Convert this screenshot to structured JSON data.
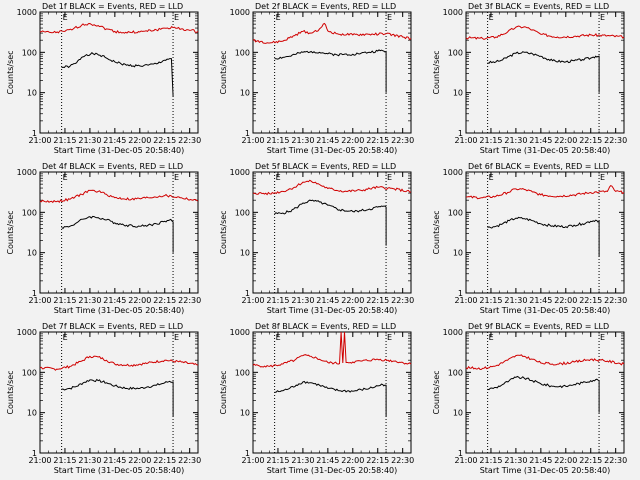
{
  "common": {
    "xlabel": "Start Time (31-Dec-05 20:58:40)",
    "ylabel": "Counts/sec",
    "xticks": [
      "21:00",
      "21:15",
      "21:30",
      "21:45",
      "22:00",
      "22:15",
      "22:30"
    ],
    "yticks": [
      "1",
      "10",
      "100",
      "1000"
    ],
    "markers": [
      "E",
      "E"
    ],
    "colors": {
      "events": "#000000",
      "lld": "#d00000",
      "background": "#f2f2f2"
    }
  },
  "chart_data": [
    {
      "type": "line",
      "title": "Det 1f BLACK = Events, RED = LLD",
      "xlabel": "Start Time (31-Dec-05 20:58:40)",
      "ylabel": "Counts/sec",
      "yscale": "log",
      "ylim": [
        1,
        1000
      ],
      "xlim": [
        "21:00",
        "22:35"
      ],
      "event_lines": [
        "21:13",
        "22:20"
      ],
      "series": [
        {
          "name": "Events",
          "color": "#000000",
          "x": [
            "21:13",
            "21:18",
            "21:22",
            "21:25",
            "21:28",
            "21:32",
            "21:36",
            "21:40",
            "21:45",
            "21:52",
            "22:00",
            "22:05",
            "22:10",
            "22:14",
            "22:18",
            "22:19",
            "22:20"
          ],
          "values": [
            42,
            45,
            55,
            75,
            88,
            92,
            85,
            72,
            58,
            48,
            46,
            48,
            52,
            62,
            70,
            70,
            8
          ]
        },
        {
          "name": "LLD",
          "color": "#d00000",
          "x": [
            "21:00",
            "21:08",
            "21:15",
            "21:20",
            "21:25",
            "21:30",
            "21:35",
            "21:40",
            "21:45",
            "21:50",
            "22:00",
            "22:10",
            "22:15",
            "22:20",
            "22:25",
            "22:30",
            "22:35"
          ],
          "values": [
            320,
            310,
            330,
            380,
            470,
            520,
            460,
            380,
            330,
            310,
            320,
            360,
            400,
            410,
            380,
            350,
            330
          ]
        }
      ]
    },
    {
      "type": "line",
      "title": "Det 2f BLACK = Events, RED = LLD",
      "xlabel": "Start Time (31-Dec-05 20:58:40)",
      "ylabel": "Counts/sec",
      "yscale": "log",
      "ylim": [
        1,
        1000
      ],
      "xlim": [
        "21:00",
        "22:35"
      ],
      "event_lines": [
        "21:13",
        "22:20"
      ],
      "series": [
        {
          "name": "Events",
          "color": "#000000",
          "x": [
            "21:13",
            "21:18",
            "21:22",
            "21:26",
            "21:30",
            "21:35",
            "21:40",
            "21:45",
            "21:50",
            "22:00",
            "22:05",
            "22:10",
            "22:15",
            "22:18",
            "22:20",
            "22:20"
          ],
          "values": [
            70,
            75,
            80,
            90,
            100,
            105,
            100,
            92,
            88,
            90,
            95,
            100,
            108,
            110,
            105,
            10
          ]
        },
        {
          "name": "LLD",
          "color": "#d00000",
          "x": [
            "21:00",
            "21:10",
            "21:18",
            "21:25",
            "21:30",
            "21:35",
            "21:40",
            "21:43",
            "21:45",
            "21:50",
            "22:00",
            "22:10",
            "22:20",
            "22:30",
            "22:35"
          ],
          "values": [
            200,
            170,
            190,
            260,
            330,
            300,
            380,
            520,
            340,
            290,
            270,
            280,
            290,
            240,
            220
          ]
        }
      ]
    },
    {
      "type": "line",
      "title": "Det 3f BLACK = Events, RED = LLD",
      "xlabel": "Start Time (31-Dec-05 20:58:40)",
      "ylabel": "Counts/sec",
      "yscale": "log",
      "ylim": [
        1,
        1000
      ],
      "xlim": [
        "21:00",
        "22:35"
      ],
      "event_lines": [
        "21:13",
        "22:20"
      ],
      "series": [
        {
          "name": "Events",
          "color": "#000000",
          "x": [
            "21:13",
            "21:18",
            "21:22",
            "21:26",
            "21:30",
            "21:35",
            "21:40",
            "21:45",
            "21:52",
            "22:00",
            "22:05",
            "22:10",
            "22:15",
            "22:18",
            "22:20",
            "22:20"
          ],
          "values": [
            55,
            58,
            65,
            80,
            95,
            100,
            92,
            80,
            62,
            58,
            62,
            66,
            72,
            80,
            80,
            10
          ]
        },
        {
          "name": "LLD",
          "color": "#d00000",
          "x": [
            "21:00",
            "21:10",
            "21:18",
            "21:25",
            "21:30",
            "21:35",
            "21:40",
            "21:45",
            "21:55",
            "22:05",
            "22:15",
            "22:25",
            "22:35"
          ],
          "values": [
            230,
            220,
            240,
            320,
            420,
            430,
            360,
            280,
            240,
            250,
            270,
            260,
            240
          ]
        }
      ]
    },
    {
      "type": "line",
      "title": "Det 4f BLACK = Events, RED = LLD",
      "xlabel": "Start Time (31-Dec-05 20:58:40)",
      "ylabel": "Counts/sec",
      "yscale": "log",
      "ylim": [
        1,
        1000
      ],
      "xlim": [
        "21:00",
        "22:35"
      ],
      "event_lines": [
        "21:13",
        "22:20"
      ],
      "series": [
        {
          "name": "Events",
          "color": "#000000",
          "x": [
            "21:13",
            "21:18",
            "21:22",
            "21:26",
            "21:30",
            "21:35",
            "21:40",
            "21:45",
            "21:52",
            "22:00",
            "22:05",
            "22:10",
            "22:15",
            "22:18",
            "22:20",
            "22:20"
          ],
          "values": [
            42,
            45,
            55,
            68,
            78,
            74,
            65,
            55,
            48,
            45,
            48,
            52,
            60,
            65,
            58,
            10
          ]
        },
        {
          "name": "LLD",
          "color": "#d00000",
          "x": [
            "21:00",
            "21:10",
            "21:18",
            "21:25",
            "21:30",
            "21:35",
            "21:40",
            "21:45",
            "21:55",
            "22:05",
            "22:15",
            "22:25",
            "22:35"
          ],
          "values": [
            190,
            185,
            210,
            280,
            350,
            330,
            280,
            230,
            210,
            230,
            260,
            230,
            190
          ]
        }
      ]
    },
    {
      "type": "line",
      "title": "Det 5f BLACK = Events, RED = LLD",
      "xlabel": "Start Time (31-Dec-05 20:58:40)",
      "ylabel": "Counts/sec",
      "yscale": "log",
      "ylim": [
        1,
        1000
      ],
      "xlim": [
        "21:00",
        "22:35"
      ],
      "event_lines": [
        "21:13",
        "22:20"
      ],
      "series": [
        {
          "name": "Events",
          "color": "#000000",
          "x": [
            "21:13",
            "21:18",
            "21:22",
            "21:26",
            "21:30",
            "21:35",
            "21:40",
            "21:45",
            "21:52",
            "22:00",
            "22:05",
            "22:10",
            "22:15",
            "22:18",
            "22:20",
            "22:20"
          ],
          "values": [
            92,
            96,
            105,
            130,
            170,
            195,
            180,
            150,
            115,
            105,
            110,
            120,
            135,
            140,
            135,
            15
          ]
        },
        {
          "name": "LLD",
          "color": "#d00000",
          "x": [
            "21:00",
            "21:10",
            "21:18",
            "21:25",
            "21:30",
            "21:35",
            "21:40",
            "21:45",
            "21:55",
            "22:05",
            "22:15",
            "22:25",
            "22:35"
          ],
          "values": [
            300,
            290,
            330,
            420,
            560,
            590,
            490,
            390,
            330,
            350,
            420,
            380,
            320
          ]
        }
      ]
    },
    {
      "type": "line",
      "title": "Det 6f BLACK = Events, RED = LLD",
      "xlabel": "Start Time (31-Dec-05 20:58:40)",
      "ylabel": "Counts/sec",
      "yscale": "log",
      "ylim": [
        1,
        1000
      ],
      "xlim": [
        "21:00",
        "22:35"
      ],
      "event_lines": [
        "21:13",
        "22:20"
      ],
      "series": [
        {
          "name": "Events",
          "color": "#000000",
          "x": [
            "21:13",
            "21:18",
            "21:22",
            "21:26",
            "21:30",
            "21:35",
            "21:40",
            "21:45",
            "21:52",
            "22:00",
            "22:05",
            "22:10",
            "22:15",
            "22:18",
            "22:20",
            "22:20"
          ],
          "values": [
            42,
            45,
            52,
            62,
            72,
            70,
            62,
            52,
            46,
            44,
            48,
            52,
            60,
            64,
            60,
            8
          ]
        },
        {
          "name": "LLD",
          "color": "#d00000",
          "x": [
            "21:00",
            "21:10",
            "21:18",
            "21:25",
            "21:30",
            "21:35",
            "21:40",
            "21:45",
            "21:55",
            "22:05",
            "22:15",
            "22:20",
            "22:25",
            "22:27",
            "22:30",
            "22:35"
          ],
          "values": [
            240,
            230,
            250,
            310,
            380,
            370,
            320,
            270,
            250,
            270,
            310,
            320,
            330,
            460,
            330,
            310
          ]
        }
      ]
    },
    {
      "type": "line",
      "title": "Det 7f BLACK = Events, RED = LLD",
      "xlabel": "Start Time (31-Dec-05 20:58:40)",
      "ylabel": "Counts/sec",
      "yscale": "log",
      "ylim": [
        1,
        1000
      ],
      "xlim": [
        "21:00",
        "22:35"
      ],
      "event_lines": [
        "21:13",
        "22:20"
      ],
      "series": [
        {
          "name": "Events",
          "color": "#000000",
          "x": [
            "21:13",
            "21:18",
            "21:22",
            "21:26",
            "21:30",
            "21:35",
            "21:40",
            "21:45",
            "21:52",
            "22:00",
            "22:05",
            "22:10",
            "22:15",
            "22:18",
            "22:20",
            "22:20"
          ],
          "values": [
            38,
            40,
            45,
            55,
            65,
            62,
            55,
            46,
            40,
            40,
            44,
            48,
            55,
            60,
            58,
            8
          ]
        },
        {
          "name": "LLD",
          "color": "#d00000",
          "x": [
            "21:00",
            "21:10",
            "21:18",
            "21:25",
            "21:30",
            "21:35",
            "21:40",
            "21:45",
            "21:55",
            "22:05",
            "22:15",
            "22:25",
            "22:35"
          ],
          "values": [
            130,
            120,
            140,
            190,
            250,
            240,
            200,
            160,
            150,
            170,
            200,
            180,
            150
          ]
        }
      ]
    },
    {
      "type": "line",
      "title": "Det 8f BLACK = Events, RED = LLD",
      "xlabel": "Start Time (31-Dec-05 20:58:40)",
      "ylabel": "Counts/sec",
      "yscale": "log",
      "ylim": [
        1,
        1000
      ],
      "xlim": [
        "21:00",
        "22:35"
      ],
      "event_lines": [
        "21:13",
        "22:20"
      ],
      "series": [
        {
          "name": "Events",
          "color": "#000000",
          "x": [
            "21:13",
            "21:18",
            "21:22",
            "21:26",
            "21:30",
            "21:35",
            "21:40",
            "21:45",
            "21:52",
            "22:00",
            "22:05",
            "22:10",
            "22:15",
            "22:18",
            "22:20",
            "22:20"
          ],
          "values": [
            32,
            35,
            40,
            48,
            58,
            55,
            48,
            40,
            35,
            34,
            37,
            40,
            46,
            50,
            48,
            8
          ]
        },
        {
          "name": "LLD",
          "color": "#d00000",
          "x": [
            "21:00",
            "21:10",
            "21:18",
            "21:25",
            "21:30",
            "21:35",
            "21:40",
            "21:45",
            "21:52",
            "21:53",
            "21:54",
            "21:55",
            "21:56",
            "21:57",
            "22:00",
            "22:05",
            "22:15",
            "22:25",
            "22:35"
          ],
          "values": [
            150,
            140,
            160,
            200,
            260,
            250,
            210,
            175,
            165,
            1000,
            170,
            1000,
            175,
            175,
            180,
            190,
            210,
            190,
            160
          ]
        }
      ]
    },
    {
      "type": "line",
      "title": "Det 9f BLACK = Events, RED = LLD",
      "xlabel": "Start Time (31-Dec-05 20:58:40)",
      "ylabel": "Counts/sec",
      "yscale": "log",
      "ylim": [
        1,
        1000
      ],
      "xlim": [
        "21:00",
        "22:35"
      ],
      "event_lines": [
        "21:13",
        "22:20"
      ],
      "series": [
        {
          "name": "Events",
          "color": "#000000",
          "x": [
            "21:13",
            "21:18",
            "21:22",
            "21:26",
            "21:30",
            "21:35",
            "21:40",
            "21:45",
            "21:52",
            "22:00",
            "22:05",
            "22:10",
            "22:15",
            "22:18",
            "22:20",
            "22:20"
          ],
          "values": [
            38,
            42,
            50,
            62,
            75,
            72,
            62,
            52,
            45,
            45,
            50,
            55,
            62,
            66,
            62,
            10
          ]
        },
        {
          "name": "LLD",
          "color": "#d00000",
          "x": [
            "21:00",
            "21:10",
            "21:18",
            "21:25",
            "21:30",
            "21:35",
            "21:40",
            "21:45",
            "21:55",
            "22:05",
            "22:15",
            "22:25",
            "22:35"
          ],
          "values": [
            130,
            125,
            145,
            200,
            260,
            250,
            210,
            170,
            160,
            180,
            210,
            190,
            160
          ]
        }
      ]
    }
  ]
}
